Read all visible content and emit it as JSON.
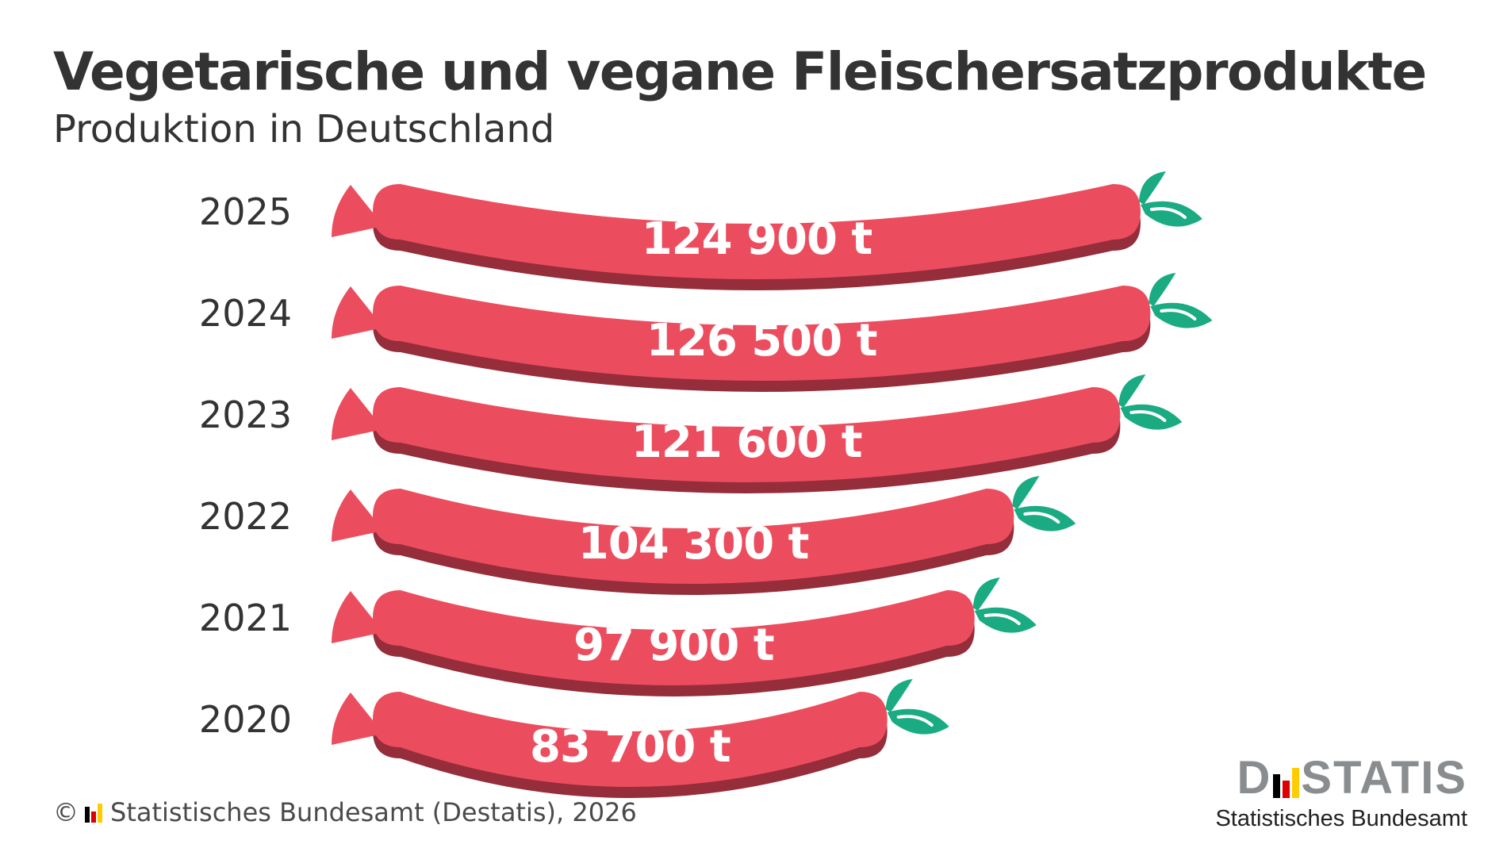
{
  "title": "Vegetarische und vegane Fleischersatzprodukte",
  "subtitle": "Produktion in Deutschland",
  "chart_data": {
    "type": "bar",
    "orientation": "horizontal",
    "categories": [
      "2025",
      "2024",
      "2023",
      "2022",
      "2021",
      "2020"
    ],
    "values": [
      124900,
      126500,
      121600,
      104300,
      97900,
      83700
    ],
    "value_labels": [
      "124 900 t",
      "126 500 t",
      "121 600 t",
      "104 300 t",
      "97 900 t",
      "83 700 t"
    ],
    "unit": "t",
    "colors": {
      "bar": "#ec4d5e",
      "bar_shadow": "#952d3b",
      "leaf": "#1aab83"
    }
  },
  "footer": {
    "copyright": "© ",
    "source": "Statistisches Bundesamt (Destatis), 2026"
  },
  "brand": {
    "word_prefix": "D",
    "word_suffix": "STATIS",
    "subline": "Statistisches Bundesamt",
    "flag_colors": [
      "#000000",
      "#dd0000",
      "#ffcc00"
    ]
  }
}
